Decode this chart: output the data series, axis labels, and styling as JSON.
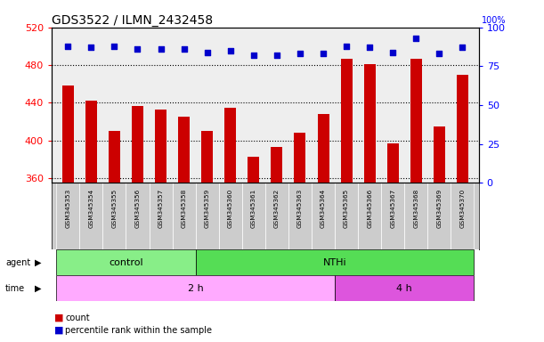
{
  "title": "GDS3522 / ILMN_2432458",
  "samples": [
    "GSM345353",
    "GSM345354",
    "GSM345355",
    "GSM345356",
    "GSM345357",
    "GSM345358",
    "GSM345359",
    "GSM345360",
    "GSM345361",
    "GSM345362",
    "GSM345363",
    "GSM345364",
    "GSM345365",
    "GSM345366",
    "GSM345367",
    "GSM345368",
    "GSM345369",
    "GSM345370"
  ],
  "counts": [
    458,
    442,
    410,
    437,
    433,
    425,
    410,
    435,
    383,
    393,
    408,
    428,
    487,
    481,
    397,
    487,
    415,
    470
  ],
  "percentile_ranks": [
    88,
    87,
    88,
    86,
    86,
    86,
    84,
    85,
    82,
    82,
    83,
    83,
    88,
    87,
    84,
    93,
    83,
    87
  ],
  "ylim_left": [
    355,
    520
  ],
  "ylim_right": [
    0,
    100
  ],
  "yticks_left": [
    360,
    400,
    440,
    480,
    520
  ],
  "yticks_right": [
    0,
    25,
    50,
    75,
    100
  ],
  "bar_color": "#cc0000",
  "dot_color": "#0000cc",
  "bar_bottom": 355,
  "agent_groups": [
    {
      "label": "control",
      "start": 0,
      "end": 6,
      "color": "#88ee88"
    },
    {
      "label": "NTHi",
      "start": 6,
      "end": 18,
      "color": "#55dd55"
    }
  ],
  "time_groups": [
    {
      "label": "2 h",
      "start": 0,
      "end": 12,
      "color": "#ffaaff"
    },
    {
      "label": "4 h",
      "start": 12,
      "end": 18,
      "color": "#dd55dd"
    }
  ],
  "legend_items": [
    {
      "label": "count",
      "color": "#cc0000"
    },
    {
      "label": "percentile rank within the sample",
      "color": "#0000cc"
    }
  ],
  "plot_bg_color": "#eeeeee",
  "label_bg_color": "#cccccc"
}
